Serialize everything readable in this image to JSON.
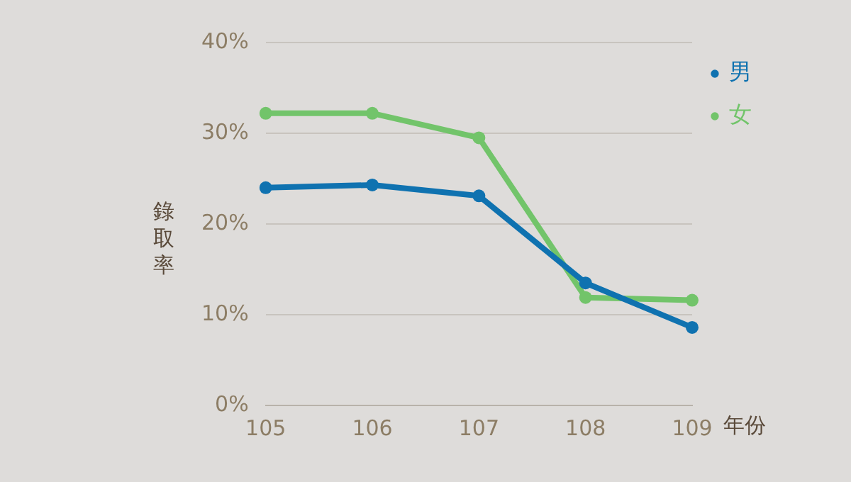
{
  "chart_data": {
    "type": "line",
    "categories": [
      "105",
      "106",
      "107",
      "108",
      "109"
    ],
    "series": [
      {
        "name": "男",
        "color": "#0f72b0",
        "values": [
          24.0,
          24.3,
          23.1,
          13.5,
          8.6
        ]
      },
      {
        "name": "女",
        "color": "#72c46a",
        "values": [
          32.2,
          32.2,
          29.5,
          11.9,
          11.6
        ]
      }
    ],
    "ylabel": "錄取率",
    "xlabel": "年份",
    "ylim": [
      0,
      40
    ],
    "yticks": [
      {
        "value": 0,
        "label": "0%"
      },
      {
        "value": 10,
        "label": "10%"
      },
      {
        "value": 20,
        "label": "20%"
      },
      {
        "value": 30,
        "label": "30%"
      },
      {
        "value": 40,
        "label": "40%"
      }
    ],
    "grid": "y",
    "legend": "top right",
    "marker": "circle",
    "line_style": "solid"
  }
}
